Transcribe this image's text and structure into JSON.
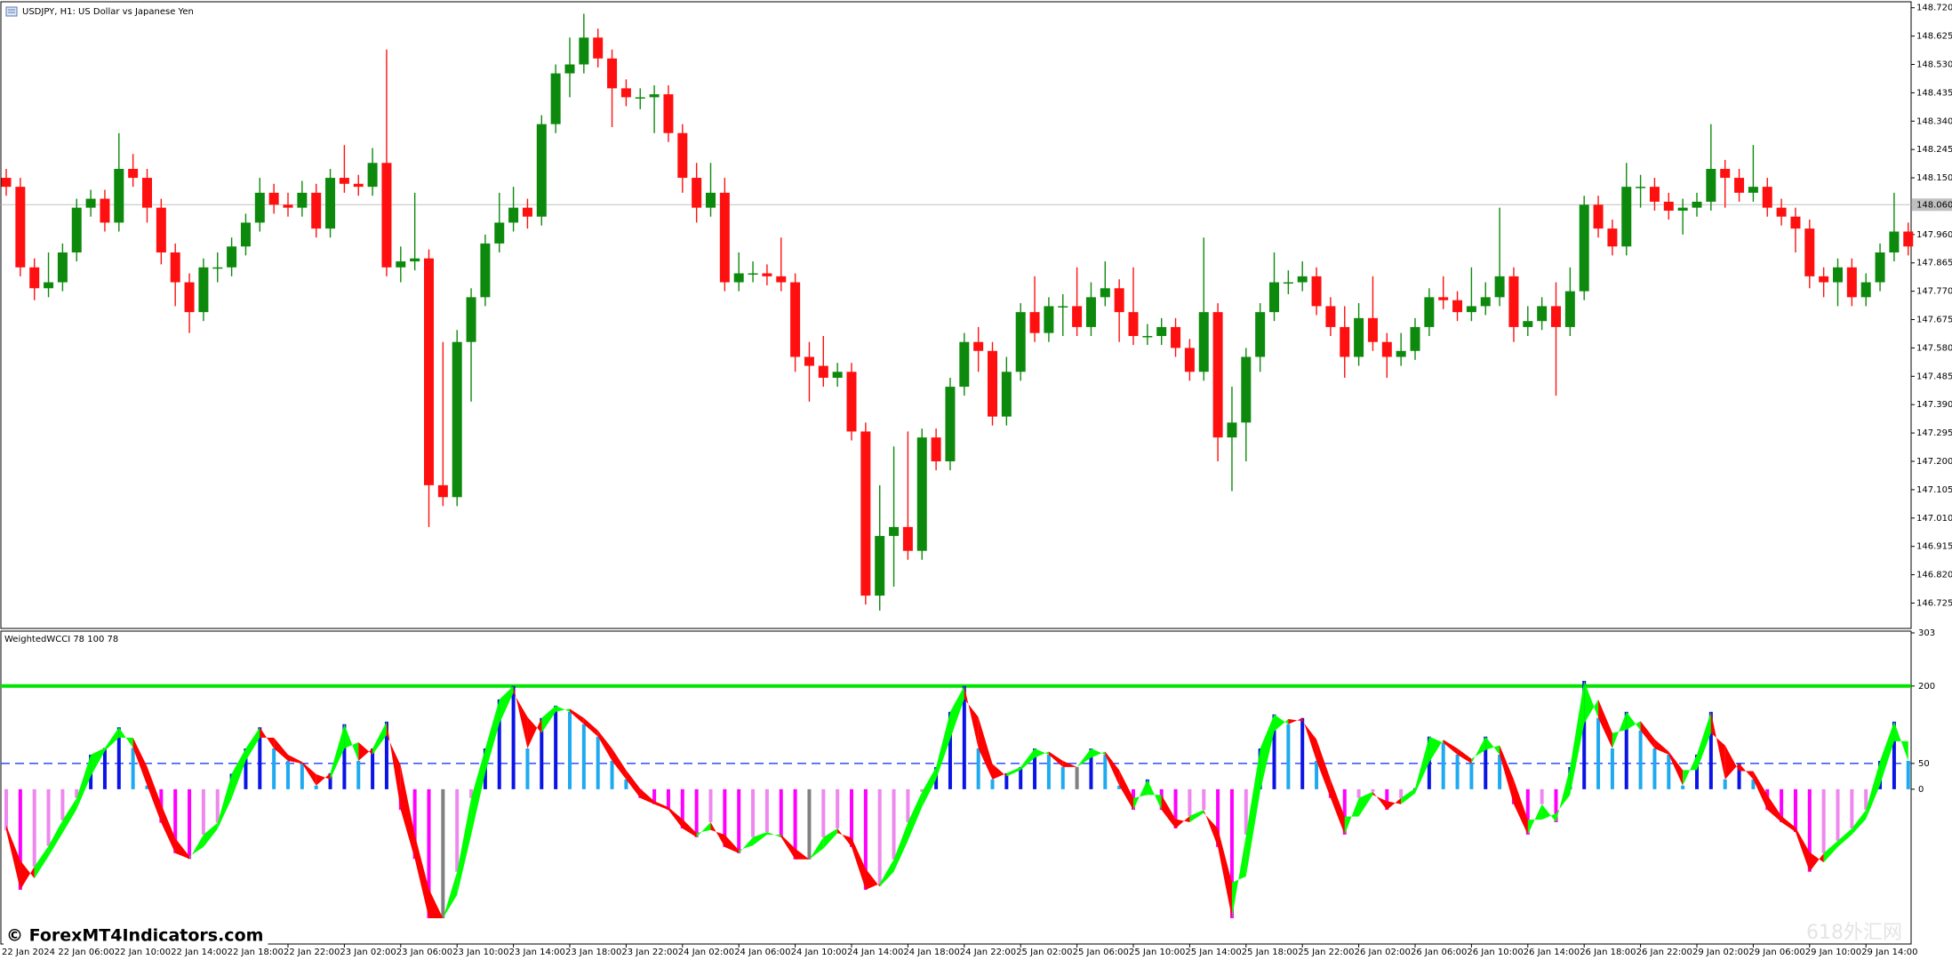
{
  "chart_data": [
    {
      "type": "candlestick",
      "title": "USDJPY, H1:  US Dollar vs Japanese Yen",
      "up_color": "#0d8a0d",
      "down_color": "#ff1010",
      "open": [
        148.15,
        148.12,
        147.85,
        147.78,
        147.8,
        147.9,
        148.05,
        148.08,
        148.0,
        148.18,
        148.15,
        148.05,
        147.9,
        147.8,
        147.7,
        147.85,
        147.85,
        147.92,
        148.0,
        148.1,
        148.06,
        148.05,
        148.1,
        147.98,
        148.15,
        148.13,
        148.12,
        148.2,
        147.85,
        147.87,
        147.88,
        147.12,
        147.08,
        147.6,
        147.75,
        147.93,
        148.0,
        148.05,
        148.02,
        148.33,
        148.5,
        148.53,
        148.62,
        148.55,
        148.45,
        148.42,
        148.42,
        148.43,
        148.3,
        148.15,
        148.05,
        148.1,
        147.8,
        147.83,
        147.83,
        147.82,
        147.8,
        147.55,
        147.52,
        147.48,
        147.5,
        147.3,
        146.75,
        146.95,
        146.98,
        146.9,
        147.28,
        147.2,
        147.45,
        147.6,
        147.57,
        147.35,
        147.5,
        147.7,
        147.63,
        147.72,
        147.72,
        147.65,
        147.75,
        147.78,
        147.7,
        147.62,
        147.62,
        147.65,
        147.58,
        147.5,
        147.7,
        147.28,
        147.33,
        147.55,
        147.7,
        147.8,
        147.8,
        147.82,
        147.72,
        147.65,
        147.55,
        147.68,
        147.6,
        147.55,
        147.57,
        147.65,
        147.75,
        147.74,
        147.7,
        147.72,
        147.75,
        147.82,
        147.65,
        147.67,
        147.72,
        147.65,
        147.77,
        148.06,
        147.98,
        147.92,
        148.12,
        148.12,
        148.07,
        148.04,
        148.05,
        148.07,
        148.18,
        148.15,
        148.1,
        148.12,
        148.05,
        148.02,
        147.98,
        147.82,
        147.8,
        147.85,
        147.75,
        147.8,
        147.9,
        147.97
      ],
      "high": [
        148.18,
        148.15,
        147.88,
        147.9,
        147.93,
        148.08,
        148.11,
        148.11,
        148.3,
        148.23,
        148.18,
        148.08,
        147.93,
        147.83,
        147.88,
        147.9,
        147.95,
        148.03,
        148.15,
        148.13,
        148.1,
        148.14,
        148.13,
        148.18,
        148.26,
        148.16,
        148.25,
        148.58,
        147.92,
        148.1,
        147.91,
        147.6,
        147.64,
        147.78,
        147.96,
        148.1,
        148.12,
        148.08,
        148.36,
        148.53,
        148.62,
        148.7,
        148.65,
        148.58,
        148.48,
        148.45,
        148.46,
        148.46,
        148.33,
        148.2,
        148.2,
        148.15,
        147.9,
        147.87,
        147.86,
        147.95,
        147.83,
        147.6,
        147.62,
        147.53,
        147.53,
        147.33,
        147.12,
        147.25,
        147.3,
        147.31,
        147.31,
        147.48,
        147.63,
        147.65,
        147.6,
        147.55,
        147.73,
        147.82,
        147.75,
        147.76,
        147.85,
        147.8,
        147.87,
        147.81,
        147.85,
        147.66,
        147.68,
        147.68,
        147.61,
        147.95,
        147.73,
        147.45,
        147.58,
        147.73,
        147.9,
        147.84,
        147.87,
        147.85,
        147.75,
        147.72,
        147.73,
        147.82,
        147.63,
        147.63,
        147.68,
        147.78,
        147.82,
        147.77,
        147.85,
        147.8,
        148.05,
        147.85,
        147.72,
        147.75,
        147.8,
        147.85,
        148.09,
        148.09,
        148.01,
        148.2,
        148.16,
        148.15,
        148.1,
        148.08,
        148.1,
        148.33,
        148.21,
        148.18,
        148.26,
        148.15,
        148.08,
        148.05,
        148.01,
        147.85,
        147.88,
        147.88,
        147.83,
        147.93,
        148.1,
        148.0
      ],
      "low": [
        148.09,
        147.82,
        147.74,
        147.75,
        147.77,
        147.87,
        148.02,
        147.97,
        147.97,
        148.12,
        148.0,
        147.86,
        147.72,
        147.63,
        147.67,
        147.8,
        147.82,
        147.89,
        147.97,
        148.03,
        148.02,
        148.02,
        147.95,
        147.95,
        148.1,
        148.09,
        148.09,
        147.82,
        147.8,
        147.84,
        146.98,
        147.05,
        147.05,
        147.4,
        147.72,
        147.9,
        147.97,
        147.98,
        147.99,
        148.3,
        148.42,
        148.5,
        148.52,
        148.32,
        148.39,
        148.38,
        148.3,
        148.27,
        148.1,
        148.0,
        148.02,
        147.77,
        147.77,
        147.8,
        147.79,
        147.77,
        147.5,
        147.4,
        147.45,
        147.45,
        147.27,
        146.72,
        146.7,
        146.78,
        146.87,
        146.87,
        147.17,
        147.17,
        147.42,
        147.5,
        147.32,
        147.32,
        147.47,
        147.6,
        147.6,
        147.62,
        147.62,
        147.62,
        147.72,
        147.6,
        147.59,
        147.59,
        147.59,
        147.55,
        147.47,
        147.47,
        147.2,
        147.1,
        147.2,
        147.5,
        147.67,
        147.76,
        147.77,
        147.69,
        147.62,
        147.48,
        147.52,
        147.57,
        147.48,
        147.52,
        147.54,
        147.62,
        147.71,
        147.67,
        147.67,
        147.69,
        147.72,
        147.6,
        147.62,
        147.64,
        147.42,
        147.62,
        147.74,
        147.95,
        147.89,
        147.89,
        148.05,
        148.04,
        148.01,
        147.96,
        148.02,
        148.04,
        148.05,
        148.07,
        148.07,
        148.02,
        147.99,
        147.9,
        147.78,
        147.75,
        147.72,
        147.72,
        147.72,
        147.77,
        147.87,
        147.89
      ],
      "close": [
        148.12,
        147.85,
        147.78,
        147.8,
        147.9,
        148.05,
        148.08,
        148.0,
        148.18,
        148.15,
        148.05,
        147.9,
        147.8,
        147.7,
        147.85,
        147.85,
        147.92,
        148.0,
        148.1,
        148.06,
        148.05,
        148.1,
        147.98,
        148.15,
        148.13,
        148.12,
        148.2,
        147.85,
        147.87,
        147.88,
        147.12,
        147.08,
        147.6,
        147.75,
        147.93,
        148.0,
        148.05,
        148.02,
        148.33,
        148.5,
        148.53,
        148.62,
        148.55,
        148.45,
        148.42,
        148.42,
        148.43,
        148.3,
        148.15,
        148.05,
        148.1,
        147.8,
        147.83,
        147.83,
        147.82,
        147.8,
        147.55,
        147.52,
        147.48,
        147.5,
        147.3,
        146.75,
        146.95,
        146.98,
        146.9,
        147.28,
        147.2,
        147.45,
        147.6,
        147.57,
        147.35,
        147.5,
        147.7,
        147.63,
        147.72,
        147.72,
        147.65,
        147.75,
        147.78,
        147.7,
        147.62,
        147.62,
        147.65,
        147.58,
        147.5,
        147.7,
        147.28,
        147.33,
        147.55,
        147.7,
        147.8,
        147.8,
        147.82,
        147.72,
        147.65,
        147.55,
        147.68,
        147.6,
        147.55,
        147.57,
        147.65,
        147.75,
        147.74,
        147.7,
        147.72,
        147.75,
        147.82,
        147.65,
        147.67,
        147.72,
        147.65,
        147.77,
        148.06,
        147.98,
        147.92,
        148.12,
        148.12,
        148.07,
        148.04,
        148.05,
        148.07,
        148.18,
        148.15,
        148.1,
        148.12,
        148.05,
        148.02,
        147.98,
        147.82,
        147.8,
        147.85,
        147.75,
        147.8,
        147.9,
        147.97,
        147.92
      ],
      "current_price": {
        "value": 148.06,
        "label": "148.060"
      },
      "ylim": [
        146.64,
        148.737
      ],
      "yticks": [
        {
          "value": 148.72,
          "label": "148.720"
        },
        148.625,
        {
          "value": 148.53,
          "label": "148.530"
        },
        148.435,
        {
          "value": 148.34,
          "label": "148.340"
        },
        148.245,
        {
          "value": 148.15,
          "label": "148.150"
        },
        {
          "value": 147.96,
          "label": "147.960"
        },
        147.865,
        {
          "value": 147.77,
          "label": "147.770"
        },
        147.675,
        {
          "value": 147.58,
          "label": "147.580"
        },
        147.485,
        {
          "value": 147.39,
          "label": "147.390"
        },
        147.295,
        {
          "value": 147.2,
          "label": "147.200"
        },
        147.105,
        {
          "value": 147.01,
          "label": "147.010"
        },
        146.915,
        {
          "value": 146.82,
          "label": "146.820"
        },
        146.725
      ]
    },
    {
      "type": "oscillator",
      "title": "WeightedWCCI 78 100 78",
      "categories": [
        "22 Jan 2024",
        null,
        null,
        null,
        "22 Jan 06:00",
        null,
        null,
        null,
        "22 Jan 10:00",
        null,
        null,
        null,
        "22 Jan 14:00",
        null,
        null,
        null,
        "22 Jan 18:00",
        null,
        null,
        null,
        "22 Jan 22:00",
        null,
        null,
        null,
        "23 Jan 02:00",
        null,
        null,
        null,
        "23 Jan 06:00",
        null,
        null,
        null,
        "23 Jan 10:00",
        null,
        null,
        null,
        "23 Jan 14:00",
        null,
        null,
        null,
        "23 Jan 18:00",
        null,
        null,
        null,
        "23 Jan 22:00",
        null,
        null,
        null,
        "24 Jan 02:00",
        null,
        null,
        null,
        "24 Jan 06:00",
        null,
        null,
        null,
        "24 Jan 10:00",
        null,
        null,
        null,
        "24 Jan 14:00",
        null,
        null,
        null,
        "24 Jan 18:00",
        null,
        null,
        null,
        "24 Jan 22:00",
        null,
        null,
        null,
        "25 Jan 02:00",
        null,
        null,
        null,
        "25 Jan 06:00",
        null,
        null,
        null,
        "25 Jan 10:00",
        null,
        null,
        null,
        "25 Jan 14:00",
        null,
        null,
        null,
        "25 Jan 18:00",
        null,
        null,
        null,
        "25 Jan 22:00",
        null,
        null,
        null,
        "26 Jan 02:00",
        null,
        null,
        null,
        "26 Jan 06:00",
        null,
        null,
        null,
        "26 Jan 10:00",
        null,
        null,
        null,
        "26 Jan 14:00",
        null,
        null,
        null,
        "26 Jan 18:00",
        null,
        null,
        null,
        "26 Jan 22:00",
        null,
        null,
        null,
        "29 Jan 02:00",
        null,
        null,
        null,
        "29 Jan 06:00",
        null,
        null,
        null,
        "29 Jan 10:00",
        null,
        null,
        null,
        "29 Jan 14:00",
        null,
        null,
        null
      ],
      "histogram": [
        -80,
        -195,
        -150,
        -110,
        -60,
        -17,
        67,
        80,
        120,
        80,
        7,
        -65,
        -124,
        -135,
        -88,
        -65,
        30,
        79,
        120,
        79,
        55,
        50,
        7,
        31,
        126,
        55,
        79,
        131,
        -40,
        -135,
        -250,
        -250,
        -160,
        -17,
        79,
        174,
        200,
        79,
        138,
        162,
        150,
        126,
        102,
        55,
        19,
        -17,
        -29,
        -40,
        -76,
        -93,
        -64,
        -112,
        -124,
        -93,
        -83,
        -93,
        -136,
        -136,
        -93,
        -76,
        -112,
        -195,
        -183,
        -136,
        -64,
        -5,
        43,
        150,
        200,
        79,
        19,
        31,
        43,
        79,
        67,
        43,
        43,
        79,
        67,
        7,
        -40,
        19,
        -40,
        -76,
        -52,
        -40,
        -112,
        -250,
        -88,
        79,
        145,
        126,
        138,
        55,
        -17,
        -88,
        -17,
        -5,
        -40,
        -17,
        2,
        102,
        90,
        67,
        50,
        102,
        67,
        -29,
        -88,
        -29,
        -64,
        43,
        210,
        138,
        79,
        150,
        114,
        79,
        67,
        7,
        67,
        150,
        19,
        50,
        19,
        -40,
        -64,
        -83,
        -160,
        -124,
        -100,
        -76,
        -40,
        55,
        131,
        55
      ],
      "signal": [
        -70,
        -138,
        -173,
        -130,
        -85,
        -39,
        25,
        74,
        100,
        100,
        44,
        -29,
        -95,
        -130,
        -112,
        -77,
        -18,
        55,
        100,
        100,
        67,
        53,
        29,
        19,
        79,
        91,
        67,
        105,
        46,
        -88,
        -193,
        -250,
        -205,
        -89,
        31,
        127,
        187,
        140,
        109,
        150,
        156,
        138,
        114,
        79,
        37,
        1,
        -23,
        -35,
        -58,
        -85,
        -79,
        -88,
        -118,
        -109,
        -88,
        -88,
        -115,
        -136,
        -115,
        -85,
        -94,
        -154,
        -189,
        -160,
        -100,
        -35,
        19,
        97,
        175,
        140,
        49,
        25,
        37,
        61,
        73,
        55,
        43,
        61,
        73,
        37,
        -17,
        -11,
        -11,
        -58,
        -64,
        -46,
        -76,
        -181,
        -169,
        -5,
        112,
        136,
        132,
        97,
        19,
        -53,
        -53,
        -11,
        -23,
        -29,
        -8,
        52,
        96,
        79,
        59,
        76,
        85,
        19,
        -59,
        -59,
        -47,
        -11,
        127,
        174,
        109,
        115,
        132,
        97,
        73,
        37,
        37,
        109,
        85,
        35,
        35,
        -11,
        -52,
        -74,
        -122,
        -142,
        -112,
        -88,
        -58,
        8,
        93,
        93
      ],
      "rise_color": "#00ff00",
      "fall_color": "#ff0000",
      "bar_colors": {
        "pos_up": "#0a14e6",
        "pos_down": "#1eaaf0",
        "neg_down": "#ff00ff",
        "neg_up": "#ee88ee",
        "flat": "#808080"
      },
      "levels": [
        {
          "value": 200,
          "color": "#00e600",
          "style": "solid"
        },
        {
          "value": 50,
          "color": "#3c5aff",
          "style": "dashed"
        }
      ],
      "ylim": [
        -300,
        303
      ],
      "yticks": [
        303,
        200,
        50,
        0
      ]
    }
  ],
  "watermark": "© ForexMT4Indicators.com",
  "watermark2": "618外汇网"
}
